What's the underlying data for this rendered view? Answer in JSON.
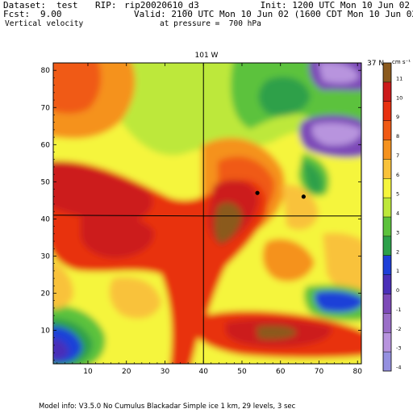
{
  "header": {
    "dataset_label": "Dataset:",
    "dataset_value": "test",
    "rip_label": "RIP:",
    "rip_value": "rip20020610_d3",
    "init": "Init: 1200 UTC Mon 10 Jun 02",
    "fcst_label": "Fcst:",
    "fcst_value": "9.00",
    "valid": "Valid: 2100 UTC Mon 10 Jun 02 (1600 CDT Mon 10 Jun 02)",
    "field": "Vertical velocity",
    "pressure": "at pressure =  700 hPa"
  },
  "map": {
    "top_label": "101 W",
    "right_label": "37 N",
    "x_ticks": [
      "10",
      "20",
      "30",
      "40",
      "50",
      "60",
      "70",
      "80"
    ],
    "y_ticks": [
      "10",
      "20",
      "30",
      "40",
      "50",
      "60",
      "70",
      "80"
    ],
    "x_range": [
      1,
      81
    ],
    "y_range": [
      1,
      82
    ],
    "meridian_x": 40,
    "parallel_y": 41,
    "stations": [
      {
        "x": 54,
        "y": 47
      },
      {
        "x": 66,
        "y": 46
      }
    ]
  },
  "colorbar": {
    "unit": "cm s⁻¹",
    "levels": [
      "11",
      "10",
      "9",
      "8",
      "7",
      "6",
      "5",
      "4",
      "3",
      "2",
      "1",
      "0",
      "-1",
      "-2",
      "-3",
      "-4"
    ],
    "colors": [
      "#8b5a1e",
      "#cc1a1a",
      "#e8300f",
      "#f05a14",
      "#f5921e",
      "#f9c23a",
      "#f5f53c",
      "#bde83a",
      "#5cc23c",
      "#2da04a",
      "#1e3fd8",
      "#4a2fb8",
      "#7d4ab8",
      "#9b6fc8",
      "#b894de",
      "#9590e0"
    ]
  },
  "footer": {
    "model_info": "Model info: V3.5.0 No Cumulus Blackadar  Simple ice     1 km,  29 levels,     3 sec"
  },
  "palette": {
    "brown": "#8b5a1e",
    "red": "#cc1a1a",
    "red2": "#e8300f",
    "orange": "#f05a14",
    "orange2": "#f5921e",
    "gold": "#f9c23a",
    "yellow": "#f5f53c",
    "lime": "#bde83a",
    "green": "#5cc23c",
    "dgreen": "#2da04a",
    "blue": "#1e3fd8",
    "purple": "#4a2fb8",
    "violet": "#7d4ab8",
    "lav": "#b894de"
  }
}
